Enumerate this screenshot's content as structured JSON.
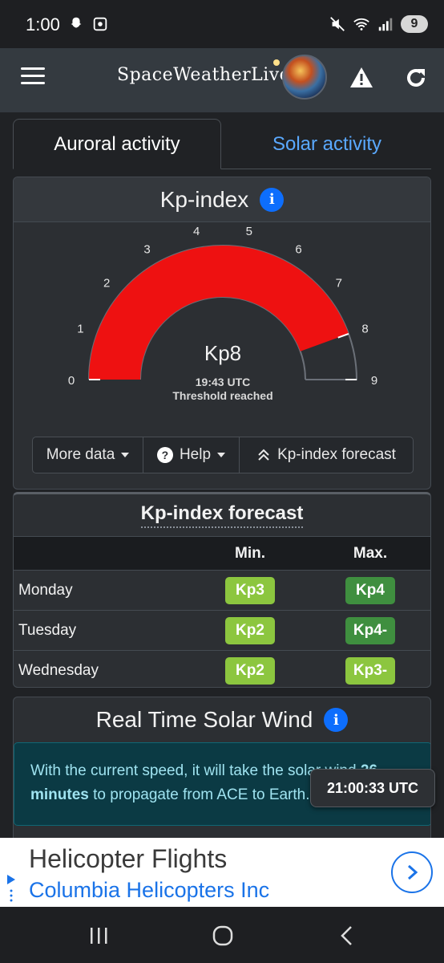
{
  "status_bar": {
    "time": "1:00",
    "battery": "9"
  },
  "app_bar": {
    "brand": "SpaceWeatherLive"
  },
  "tabs": [
    {
      "label": "Auroral activity",
      "active": true
    },
    {
      "label": "Solar activity",
      "active": false
    }
  ],
  "kp_card": {
    "title": "Kp-index",
    "value_label": "Kp8",
    "time": "19:43 UTC",
    "status": "Threshold reached",
    "scale_labels": [
      "0",
      "1",
      "2",
      "3",
      "4",
      "5",
      "6",
      "7",
      "8",
      "9"
    ],
    "kp_value": 8,
    "kp_max": 9,
    "fill_color": "#ee1111",
    "buttons": {
      "more_data": "More data",
      "help": "Help",
      "forecast": "Kp-index forecast"
    }
  },
  "forecast": {
    "title": "Kp-index forecast",
    "col_min": "Min.",
    "col_max": "Max.",
    "rows": [
      {
        "day": "Monday",
        "min": "Kp3",
        "max": "Kp4",
        "min_color": "#8cc63f",
        "max_color": "#3f8f3f"
      },
      {
        "day": "Tuesday",
        "min": "Kp2",
        "max": "Kp4-",
        "min_color": "#8cc63f",
        "max_color": "#3f8f3f"
      },
      {
        "day": "Wednesday",
        "min": "Kp2",
        "max": "Kp3-",
        "min_color": "#8cc63f",
        "max_color": "#8cc63f"
      }
    ]
  },
  "solar_wind": {
    "title": "Real Time Solar Wind",
    "text_line1": "With the current speed, it will take the solar wind ",
    "text_highlight_a": "26",
    "text_highlight_b": "minutes",
    "text_line2": " to propagate from ACE to Earth.",
    "utc_clock": "21:00:33 UTC"
  },
  "ad": {
    "title": "Helicopter Flights",
    "advertiser": "Columbia Helicopters Inc"
  }
}
